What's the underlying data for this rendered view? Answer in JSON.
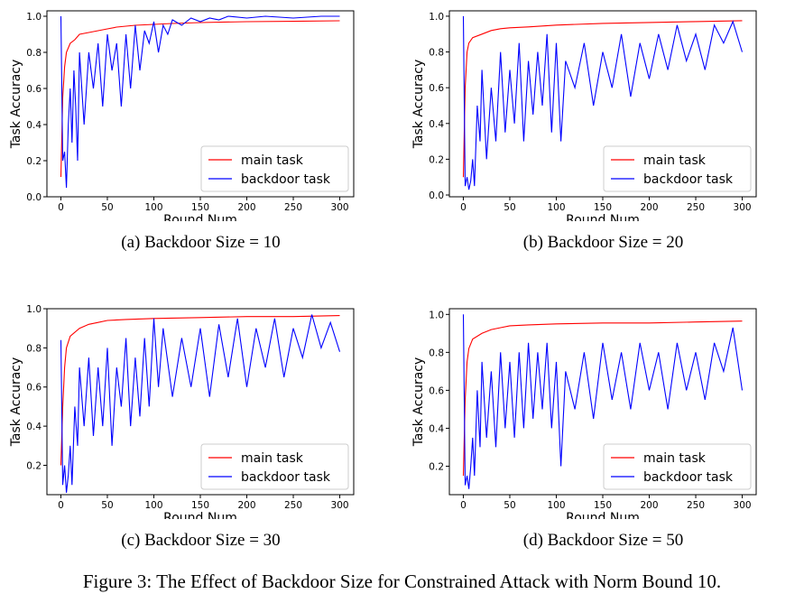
{
  "figure_caption": "Figure 3: The Effect of Backdoor Size for Constrained Attack with Norm Bound 10.",
  "colors": {
    "main": "#ff0000",
    "backdoor": "#0000ff"
  },
  "chart_data": [
    {
      "type": "line",
      "caption": "(a)  Backdoor Size = 10",
      "xlabel": "Round Num",
      "ylabel": "Task Accuracy",
      "xlim": [
        -15,
        315
      ],
      "ylim": [
        0.0,
        1.03
      ],
      "xticks": [
        0,
        50,
        100,
        150,
        200,
        250,
        300
      ],
      "yticks": [
        0.0,
        0.2,
        0.4,
        0.6,
        0.8,
        1.0
      ],
      "legend_position": "lower-right",
      "series": [
        {
          "name": "main task",
          "color": "#ff0000",
          "points": [
            [
              0,
              0.11
            ],
            [
              2,
              0.55
            ],
            [
              4,
              0.72
            ],
            [
              6,
              0.8
            ],
            [
              10,
              0.85
            ],
            [
              15,
              0.87
            ],
            [
              20,
              0.9
            ],
            [
              30,
              0.91
            ],
            [
              40,
              0.92
            ],
            [
              50,
              0.93
            ],
            [
              60,
              0.94
            ],
            [
              80,
              0.95
            ],
            [
              100,
              0.955
            ],
            [
              120,
              0.96
            ],
            [
              150,
              0.965
            ],
            [
              200,
              0.97
            ],
            [
              250,
              0.972
            ],
            [
              300,
              0.975
            ]
          ]
        },
        {
          "name": "backdoor task",
          "color": "#0000ff",
          "points": [
            [
              0,
              1.0
            ],
            [
              2,
              0.2
            ],
            [
              4,
              0.25
            ],
            [
              6,
              0.05
            ],
            [
              8,
              0.4
            ],
            [
              10,
              0.6
            ],
            [
              12,
              0.3
            ],
            [
              14,
              0.7
            ],
            [
              16,
              0.5
            ],
            [
              18,
              0.2
            ],
            [
              20,
              0.8
            ],
            [
              25,
              0.4
            ],
            [
              30,
              0.8
            ],
            [
              35,
              0.6
            ],
            [
              40,
              0.85
            ],
            [
              45,
              0.5
            ],
            [
              50,
              0.9
            ],
            [
              55,
              0.7
            ],
            [
              60,
              0.85
            ],
            [
              65,
              0.5
            ],
            [
              70,
              0.9
            ],
            [
              75,
              0.6
            ],
            [
              80,
              0.95
            ],
            [
              85,
              0.7
            ],
            [
              90,
              0.92
            ],
            [
              95,
              0.85
            ],
            [
              100,
              0.97
            ],
            [
              105,
              0.8
            ],
            [
              110,
              0.95
            ],
            [
              115,
              0.9
            ],
            [
              120,
              0.98
            ],
            [
              130,
              0.95
            ],
            [
              140,
              0.99
            ],
            [
              150,
              0.97
            ],
            [
              160,
              0.99
            ],
            [
              170,
              0.98
            ],
            [
              180,
              1.0
            ],
            [
              200,
              0.99
            ],
            [
              220,
              1.0
            ],
            [
              250,
              0.99
            ],
            [
              280,
              1.0
            ],
            [
              300,
              1.0
            ]
          ]
        }
      ]
    },
    {
      "type": "line",
      "caption": "(b)  Backdoor Size = 20",
      "xlabel": "Round Num",
      "ylabel": "Task Accuracy",
      "xlim": [
        -15,
        315
      ],
      "ylim": [
        -0.01,
        1.03
      ],
      "xticks": [
        0,
        50,
        100,
        150,
        200,
        250,
        300
      ],
      "yticks": [
        0.0,
        0.2,
        0.4,
        0.6,
        0.8,
        1.0
      ],
      "legend_position": "lower-right",
      "series": [
        {
          "name": "main task",
          "color": "#ff0000",
          "points": [
            [
              0,
              0.1
            ],
            [
              2,
              0.6
            ],
            [
              4,
              0.8
            ],
            [
              6,
              0.85
            ],
            [
              10,
              0.88
            ],
            [
              20,
              0.9
            ],
            [
              30,
              0.92
            ],
            [
              40,
              0.93
            ],
            [
              50,
              0.935
            ],
            [
              70,
              0.94
            ],
            [
              100,
              0.95
            ],
            [
              150,
              0.96
            ],
            [
              200,
              0.965
            ],
            [
              250,
              0.97
            ],
            [
              300,
              0.975
            ]
          ]
        },
        {
          "name": "backdoor task",
          "color": "#0000ff",
          "points": [
            [
              0,
              1.0
            ],
            [
              2,
              0.05
            ],
            [
              4,
              0.1
            ],
            [
              6,
              0.03
            ],
            [
              8,
              0.08
            ],
            [
              10,
              0.2
            ],
            [
              12,
              0.05
            ],
            [
              15,
              0.5
            ],
            [
              18,
              0.3
            ],
            [
              20,
              0.7
            ],
            [
              25,
              0.2
            ],
            [
              30,
              0.6
            ],
            [
              35,
              0.3
            ],
            [
              40,
              0.8
            ],
            [
              45,
              0.35
            ],
            [
              50,
              0.7
            ],
            [
              55,
              0.4
            ],
            [
              60,
              0.85
            ],
            [
              65,
              0.3
            ],
            [
              70,
              0.75
            ],
            [
              75,
              0.45
            ],
            [
              80,
              0.8
            ],
            [
              85,
              0.5
            ],
            [
              90,
              0.9
            ],
            [
              95,
              0.35
            ],
            [
              100,
              0.85
            ],
            [
              105,
              0.3
            ],
            [
              110,
              0.75
            ],
            [
              120,
              0.6
            ],
            [
              130,
              0.85
            ],
            [
              140,
              0.5
            ],
            [
              150,
              0.8
            ],
            [
              160,
              0.6
            ],
            [
              170,
              0.9
            ],
            [
              180,
              0.55
            ],
            [
              190,
              0.85
            ],
            [
              200,
              0.65
            ],
            [
              210,
              0.9
            ],
            [
              220,
              0.7
            ],
            [
              230,
              0.95
            ],
            [
              240,
              0.75
            ],
            [
              250,
              0.9
            ],
            [
              260,
              0.7
            ],
            [
              270,
              0.95
            ],
            [
              280,
              0.85
            ],
            [
              290,
              0.97
            ],
            [
              300,
              0.8
            ]
          ]
        }
      ]
    },
    {
      "type": "line",
      "caption": "(c)  Backdoor Size = 30",
      "xlabel": "Round Num",
      "ylabel": "Task Accuracy",
      "xlim": [
        -15,
        315
      ],
      "ylim": [
        0.05,
        1.0
      ],
      "xticks": [
        0,
        50,
        100,
        150,
        200,
        250,
        300
      ],
      "yticks": [
        0.2,
        0.4,
        0.6,
        0.8,
        1.0
      ],
      "legend_position": "lower-right",
      "series": [
        {
          "name": "main task",
          "color": "#ff0000",
          "points": [
            [
              0,
              0.2
            ],
            [
              2,
              0.5
            ],
            [
              4,
              0.7
            ],
            [
              6,
              0.8
            ],
            [
              10,
              0.86
            ],
            [
              20,
              0.9
            ],
            [
              30,
              0.92
            ],
            [
              40,
              0.93
            ],
            [
              50,
              0.94
            ],
            [
              70,
              0.945
            ],
            [
              100,
              0.95
            ],
            [
              150,
              0.955
            ],
            [
              200,
              0.96
            ],
            [
              250,
              0.96
            ],
            [
              300,
              0.965
            ]
          ]
        },
        {
          "name": "backdoor task",
          "color": "#0000ff",
          "points": [
            [
              0,
              0.84
            ],
            [
              2,
              0.1
            ],
            [
              4,
              0.2
            ],
            [
              6,
              0.06
            ],
            [
              8,
              0.15
            ],
            [
              10,
              0.3
            ],
            [
              12,
              0.1
            ],
            [
              15,
              0.5
            ],
            [
              18,
              0.3
            ],
            [
              20,
              0.7
            ],
            [
              25,
              0.4
            ],
            [
              30,
              0.75
            ],
            [
              35,
              0.35
            ],
            [
              40,
              0.7
            ],
            [
              45,
              0.4
            ],
            [
              50,
              0.8
            ],
            [
              55,
              0.3
            ],
            [
              60,
              0.7
            ],
            [
              65,
              0.5
            ],
            [
              70,
              0.85
            ],
            [
              75,
              0.4
            ],
            [
              80,
              0.75
            ],
            [
              85,
              0.45
            ],
            [
              90,
              0.85
            ],
            [
              95,
              0.5
            ],
            [
              100,
              0.95
            ],
            [
              105,
              0.6
            ],
            [
              110,
              0.9
            ],
            [
              120,
              0.55
            ],
            [
              130,
              0.85
            ],
            [
              140,
              0.6
            ],
            [
              150,
              0.9
            ],
            [
              160,
              0.55
            ],
            [
              170,
              0.92
            ],
            [
              180,
              0.65
            ],
            [
              190,
              0.95
            ],
            [
              200,
              0.6
            ],
            [
              210,
              0.9
            ],
            [
              220,
              0.7
            ],
            [
              230,
              0.95
            ],
            [
              240,
              0.65
            ],
            [
              250,
              0.9
            ],
            [
              260,
              0.75
            ],
            [
              270,
              0.97
            ],
            [
              280,
              0.8
            ],
            [
              290,
              0.93
            ],
            [
              300,
              0.78
            ]
          ]
        }
      ]
    },
    {
      "type": "line",
      "caption": "(d)  Backdoor Size = 50",
      "xlabel": "Round Num",
      "ylabel": "Task Accuracy",
      "xlim": [
        -15,
        315
      ],
      "ylim": [
        0.05,
        1.03
      ],
      "xticks": [
        0,
        50,
        100,
        150,
        200,
        250,
        300
      ],
      "yticks": [
        0.2,
        0.4,
        0.6,
        0.8,
        1.0
      ],
      "legend_position": "lower-right",
      "series": [
        {
          "name": "main task",
          "color": "#ff0000",
          "points": [
            [
              0,
              0.15
            ],
            [
              2,
              0.55
            ],
            [
              4,
              0.75
            ],
            [
              6,
              0.82
            ],
            [
              10,
              0.87
            ],
            [
              20,
              0.9
            ],
            [
              30,
              0.92
            ],
            [
              40,
              0.93
            ],
            [
              50,
              0.94
            ],
            [
              70,
              0.945
            ],
            [
              100,
              0.95
            ],
            [
              150,
              0.955
            ],
            [
              200,
              0.955
            ],
            [
              250,
              0.96
            ],
            [
              300,
              0.965
            ]
          ]
        },
        {
          "name": "backdoor task",
          "color": "#0000ff",
          "points": [
            [
              0,
              1.0
            ],
            [
              2,
              0.1
            ],
            [
              4,
              0.15
            ],
            [
              6,
              0.08
            ],
            [
              8,
              0.2
            ],
            [
              10,
              0.35
            ],
            [
              12,
              0.15
            ],
            [
              15,
              0.6
            ],
            [
              18,
              0.3
            ],
            [
              20,
              0.75
            ],
            [
              25,
              0.35
            ],
            [
              30,
              0.7
            ],
            [
              35,
              0.3
            ],
            [
              40,
              0.8
            ],
            [
              45,
              0.4
            ],
            [
              50,
              0.75
            ],
            [
              55,
              0.35
            ],
            [
              60,
              0.8
            ],
            [
              65,
              0.4
            ],
            [
              70,
              0.85
            ],
            [
              75,
              0.45
            ],
            [
              80,
              0.8
            ],
            [
              85,
              0.5
            ],
            [
              90,
              0.85
            ],
            [
              95,
              0.4
            ],
            [
              100,
              0.75
            ],
            [
              105,
              0.2
            ],
            [
              110,
              0.7
            ],
            [
              120,
              0.5
            ],
            [
              130,
              0.8
            ],
            [
              140,
              0.45
            ],
            [
              150,
              0.85
            ],
            [
              160,
              0.55
            ],
            [
              170,
              0.8
            ],
            [
              180,
              0.5
            ],
            [
              190,
              0.85
            ],
            [
              200,
              0.6
            ],
            [
              210,
              0.8
            ],
            [
              220,
              0.5
            ],
            [
              230,
              0.85
            ],
            [
              240,
              0.6
            ],
            [
              250,
              0.8
            ],
            [
              260,
              0.55
            ],
            [
              270,
              0.85
            ],
            [
              280,
              0.7
            ],
            [
              290,
              0.93
            ],
            [
              300,
              0.6
            ]
          ]
        }
      ]
    }
  ]
}
